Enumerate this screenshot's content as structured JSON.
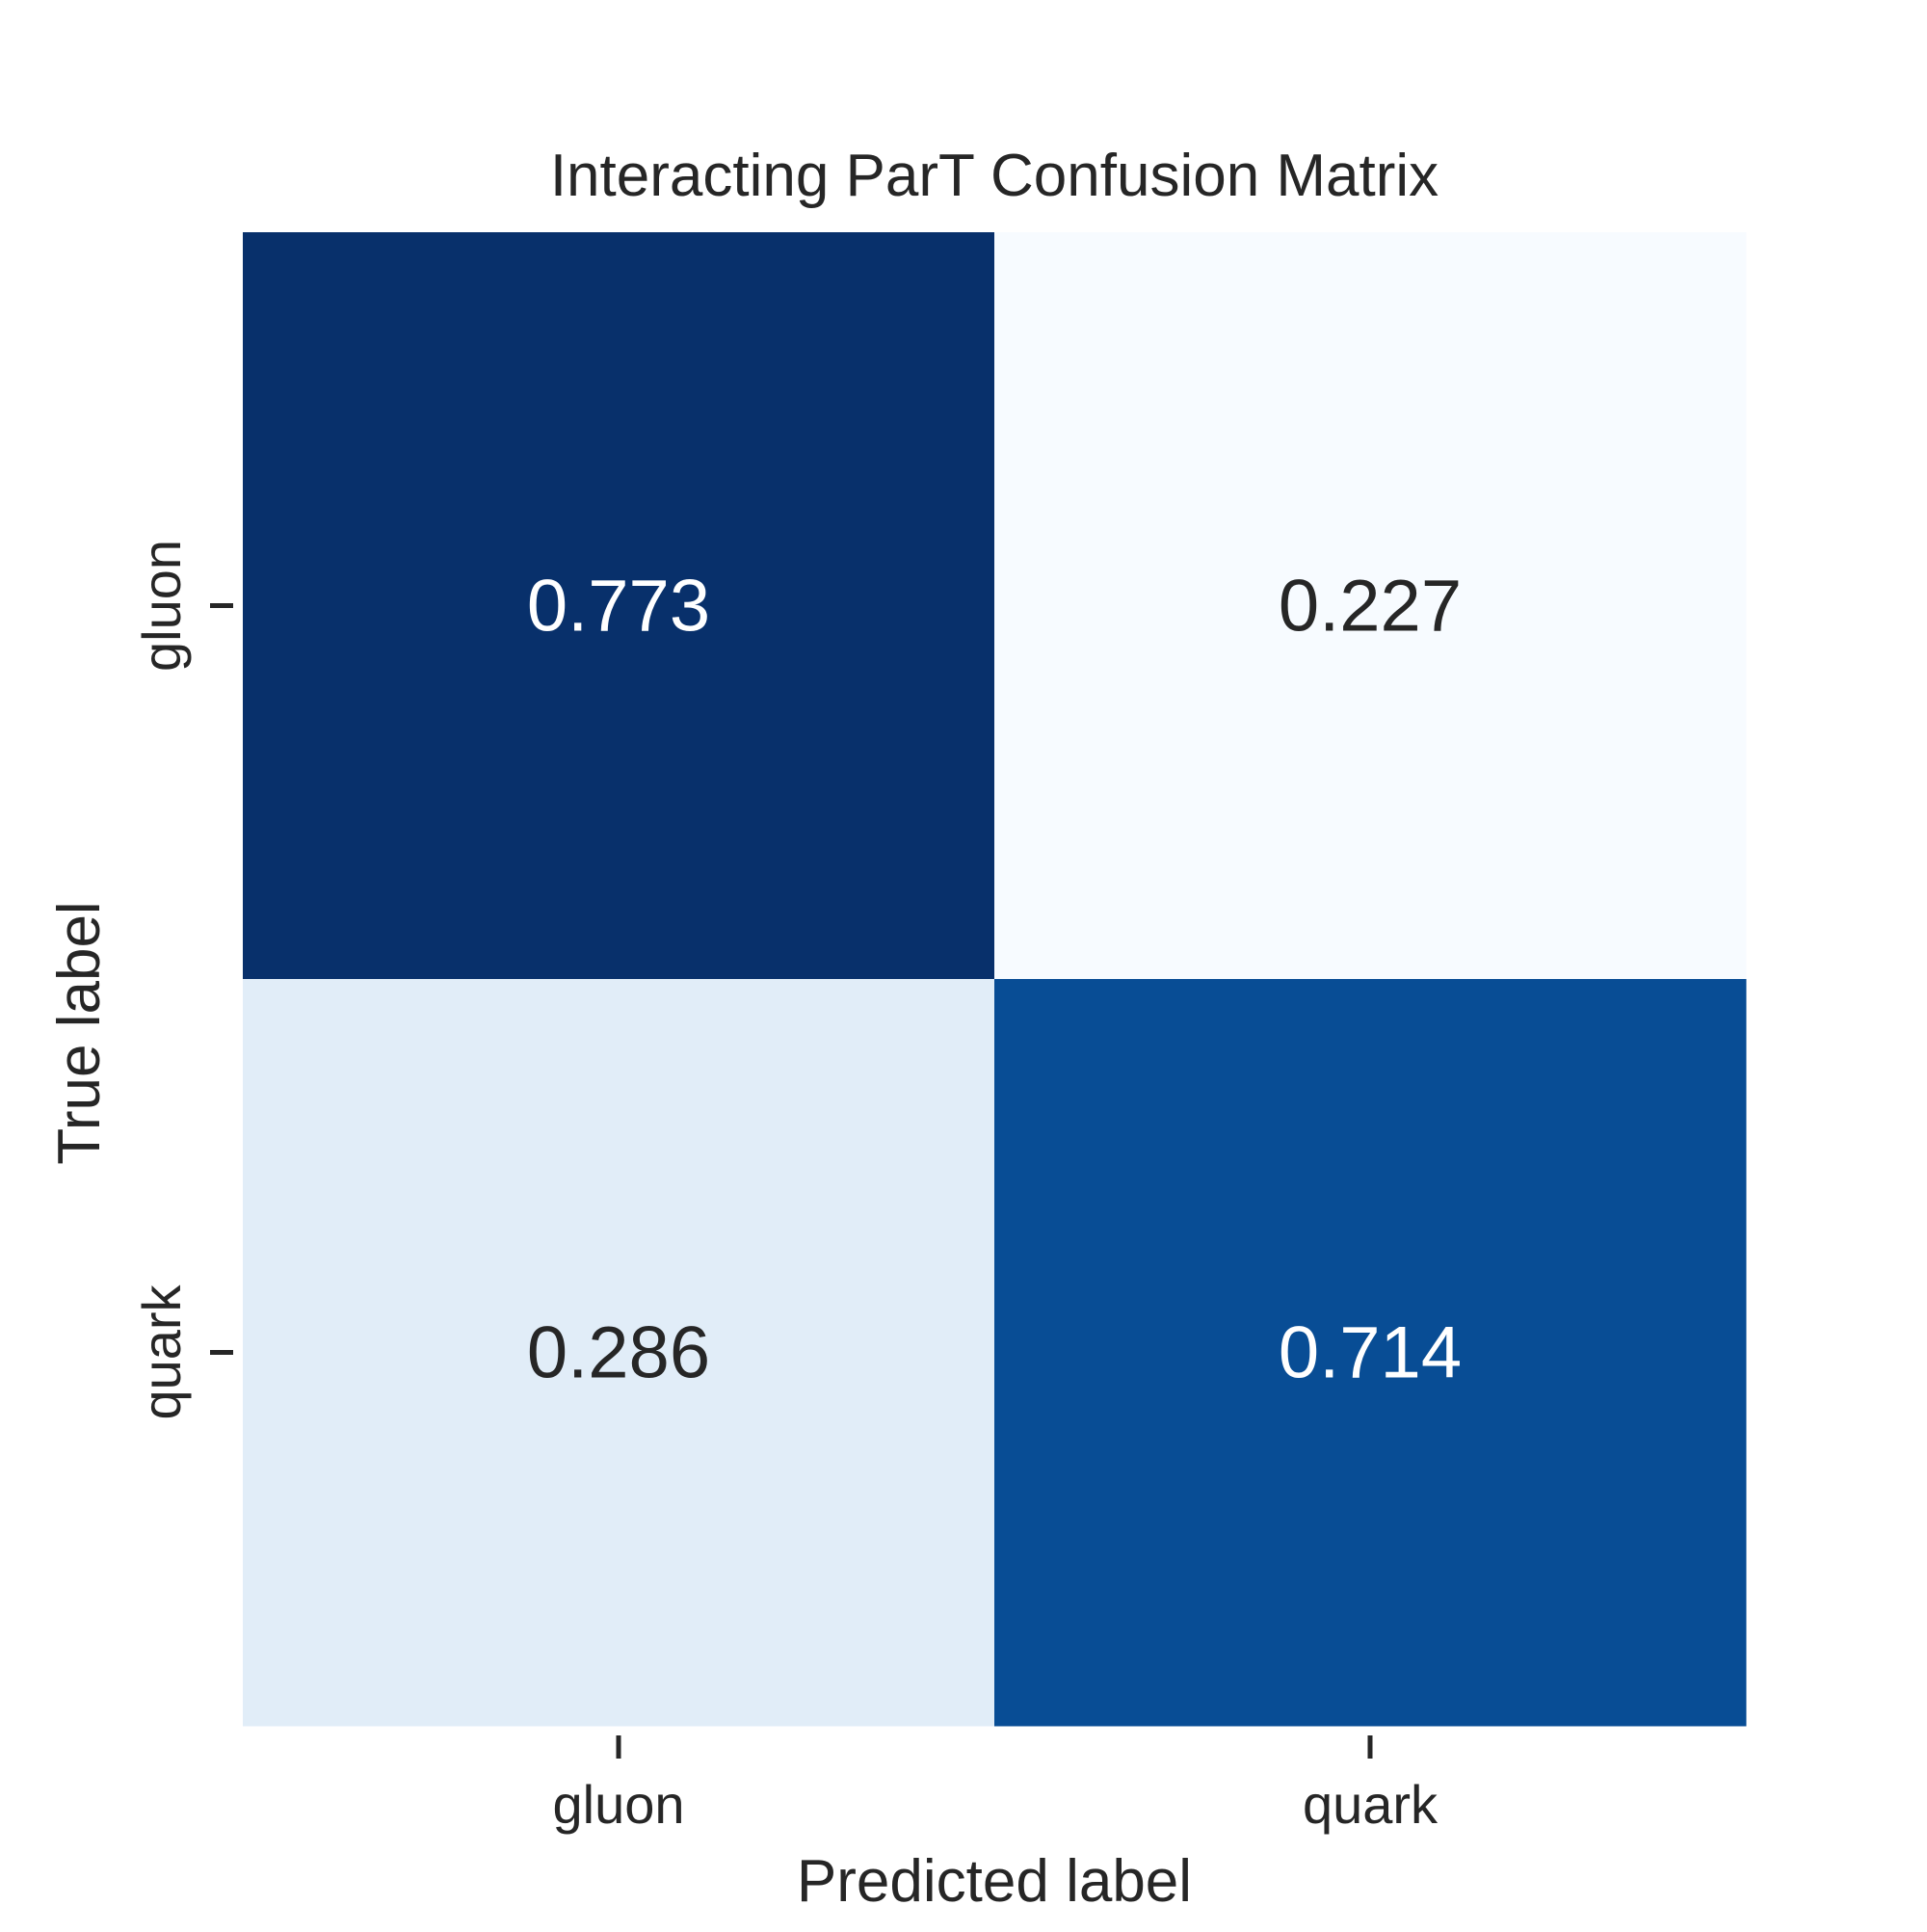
{
  "chart_data": {
    "type": "heatmap",
    "title": "Interacting ParT Confusion Matrix",
    "xlabel": "Predicted label",
    "ylabel": "True label",
    "x_categories": [
      "gluon",
      "quark"
    ],
    "y_categories": [
      "gluon",
      "quark"
    ],
    "values": [
      [
        0.773,
        0.227
      ],
      [
        0.286,
        0.714
      ]
    ],
    "value_labels": [
      [
        "0.773",
        "0.227"
      ],
      [
        "0.286",
        "0.714"
      ]
    ],
    "colormap": "Blues",
    "colorbar": false,
    "grid": false
  }
}
